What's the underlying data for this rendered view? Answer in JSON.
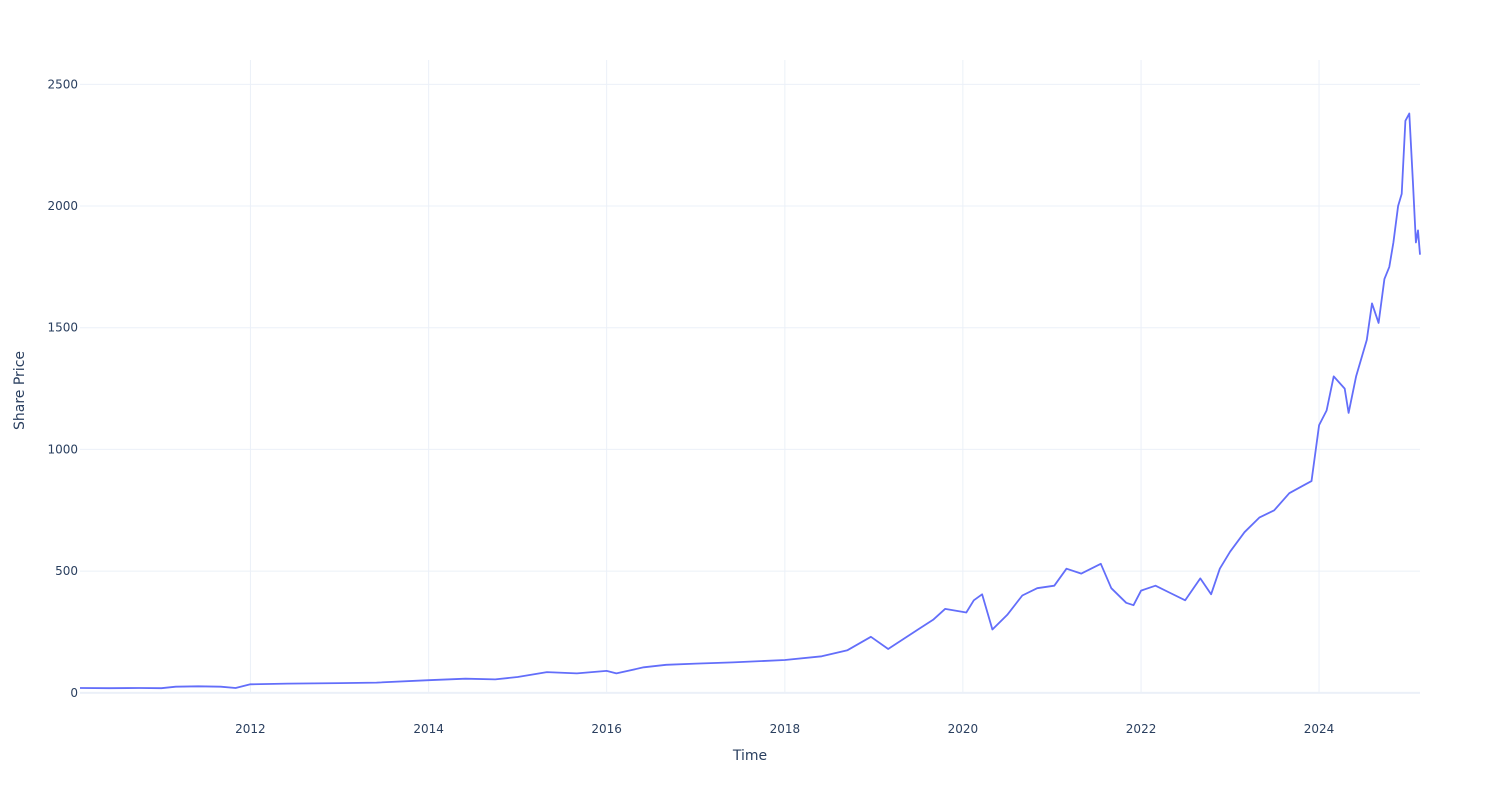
{
  "chart_data": {
    "type": "line",
    "title": "",
    "xlabel": "Time",
    "ylabel": "Share Price",
    "xlim": [
      "2010-02-01",
      "2025-02-18"
    ],
    "ylim": [
      -50,
      2600
    ],
    "grid": true,
    "x_ticks": [
      "2012",
      "2014",
      "2016",
      "2018",
      "2020",
      "2022",
      "2024"
    ],
    "y_ticks": [
      "0",
      "500",
      "1000",
      "1500",
      "2000",
      "2500"
    ],
    "colors": {
      "line": "#636efa",
      "grid": "#ebf0f8",
      "text": "#2a3f5f"
    },
    "series": [
      {
        "x": [
          "2010-02-01",
          "2010-06-01",
          "2010-10-01",
          "2011-01-01",
          "2011-03-01",
          "2011-06-01",
          "2011-09-01",
          "2011-11-01",
          "2012-01-01",
          "2012-06-01",
          "2013-01-01",
          "2013-06-01",
          "2014-01-01",
          "2014-06-01",
          "2014-10-01",
          "2015-01-01",
          "2015-05-01",
          "2015-09-01",
          "2016-01-01",
          "2016-02-10",
          "2016-06-01",
          "2016-09-01",
          "2017-01-01",
          "2017-06-01",
          "2018-01-01",
          "2018-06-01",
          "2018-09-15",
          "2018-12-20",
          "2019-03-01",
          "2019-07-01",
          "2019-09-01",
          "2019-10-20",
          "2020-01-15",
          "2020-02-15",
          "2020-03-20",
          "2020-05-01",
          "2020-07-01",
          "2020-09-01",
          "2020-11-01",
          "2021-01-10",
          "2021-03-01",
          "2021-05-01",
          "2021-07-20",
          "2021-09-01",
          "2021-11-01",
          "2021-12-01",
          "2022-01-01",
          "2022-03-01",
          "2022-05-01",
          "2022-07-01",
          "2022-09-01",
          "2022-10-15",
          "2022-11-20",
          "2023-01-01",
          "2023-03-01",
          "2023-05-01",
          "2023-07-01",
          "2023-09-01",
          "2023-10-25",
          "2023-12-01",
          "2024-01-01",
          "2024-02-01",
          "2024-03-01",
          "2024-04-15",
          "2024-05-01",
          "2024-06-01",
          "2024-07-15",
          "2024-08-05",
          "2024-09-01",
          "2024-09-25",
          "2024-10-15",
          "2024-11-01",
          "2024-11-20",
          "2024-12-05",
          "2024-12-20",
          "2025-01-05",
          "2025-01-20",
          "2025-02-01",
          "2025-02-10",
          "2025-02-18"
        ],
        "y": [
          20,
          19,
          20,
          19,
          25,
          27,
          25,
          20,
          35,
          38,
          40,
          42,
          52,
          58,
          55,
          65,
          85,
          80,
          90,
          80,
          105,
          115,
          120,
          125,
          135,
          150,
          175,
          230,
          180,
          260,
          300,
          345,
          330,
          380,
          405,
          260,
          320,
          400,
          430,
          440,
          510,
          490,
          530,
          430,
          370,
          360,
          420,
          440,
          410,
          380,
          470,
          405,
          510,
          580,
          660,
          720,
          750,
          820,
          850,
          870,
          1100,
          1160,
          1300,
          1250,
          1150,
          1300,
          1450,
          1600,
          1520,
          1700,
          1750,
          1850,
          2000,
          2050,
          2350,
          2380,
          2100,
          1850,
          1900,
          1800
        ]
      }
    ]
  }
}
